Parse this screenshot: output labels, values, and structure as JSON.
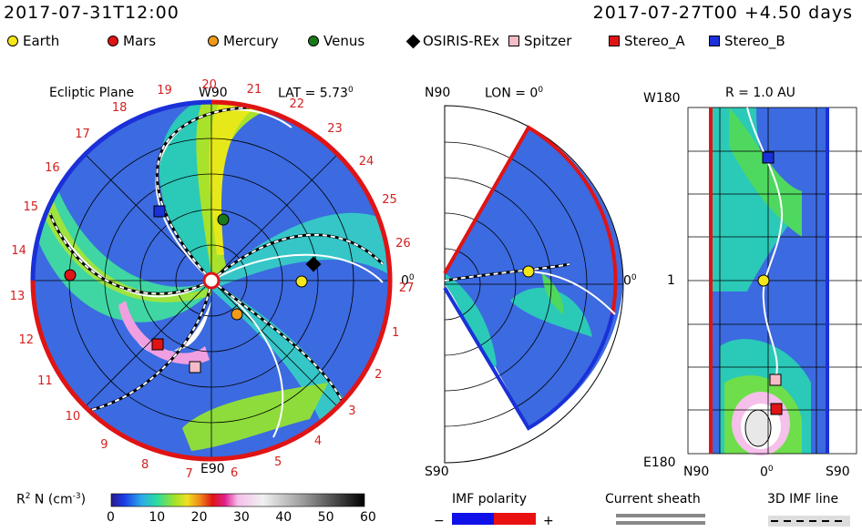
{
  "header": {
    "left_timestamp": "2017-07-31T12:00",
    "right_timestamp": "2017-07-27T00 +4.50 days"
  },
  "legend": [
    {
      "label": "Earth",
      "shape": "circle",
      "color": "#f5e61a"
    },
    {
      "label": "Mars",
      "shape": "circle",
      "color": "#e01414"
    },
    {
      "label": "Mercury",
      "shape": "circle",
      "color": "#f09a1a"
    },
    {
      "label": "Venus",
      "shape": "circle",
      "color": "#1a7a1a"
    },
    {
      "label": "OSIRIS-REx",
      "shape": "diamond",
      "color": "#000000"
    },
    {
      "label": "Spitzer",
      "shape": "square",
      "color": "#f5bcc8"
    },
    {
      "label": "Stereo_A",
      "shape": "square",
      "color": "#e01414"
    },
    {
      "label": "Stereo_B",
      "shape": "square",
      "color": "#1a30d8"
    }
  ],
  "ecliptic_panel": {
    "title": "Ecliptic Plane",
    "top_label": "W90",
    "lat_label": "LAT = 5.73",
    "lat_sup": "0",
    "bottom_label": "E90",
    "zero_label": "0",
    "zero_sup": "0",
    "ring_numbers": [
      "19",
      "20",
      "21",
      "22",
      "23",
      "24",
      "25",
      "26",
      "27",
      "1",
      "2",
      "3",
      "4",
      "5",
      "6",
      "7",
      "8",
      "9",
      "10",
      "11",
      "12",
      "13",
      "14",
      "15",
      "16",
      "17",
      "18"
    ]
  },
  "meridional_panel": {
    "top_label": "N90",
    "lon_label": "LON = 0",
    "lon_sup": "0",
    "right_label": "0",
    "right_sup": "0",
    "bottom_label": "S90"
  },
  "radial_panel": {
    "title": "R = 1.0 AU",
    "top_label": "W180",
    "mid_label": "1",
    "bottom_label": "E180",
    "x_left": "N90",
    "x_mid": "0",
    "x_mid_sup": "0",
    "x_right": "S90"
  },
  "colorbar": {
    "label": "R",
    "label_sup": "2",
    "label_rest": " N (cm",
    "label_exp": "-3",
    "label_end": ")",
    "ticks": [
      "0",
      "10",
      "20",
      "30",
      "40",
      "50",
      "60"
    ]
  },
  "imf": {
    "title": "IMF polarity",
    "minus": "−",
    "plus": "+",
    "neg_color": "#1010e8",
    "pos_color": "#e81010"
  },
  "current_sheath": {
    "title": "Current sheath"
  },
  "imf_line": {
    "title": "3D IMF line"
  }
}
